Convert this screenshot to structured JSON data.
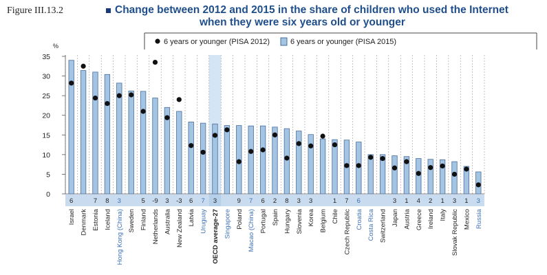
{
  "figure_label": "Figure III.13.2",
  "title_line1": "Change between 2012 and 2015 in the share of children who used the Internet",
  "title_line2": "when they were six years old or younger",
  "colors": {
    "bar": "#a4c4e4",
    "bar_edge": "#4a6d99",
    "dot": "#111111",
    "highlight": "#d4e5f5",
    "title": "#1f4e8c",
    "country_blue": "#3b6fb5",
    "strip": "#c9dcef"
  },
  "chart_data": {
    "type": "bar",
    "ylabel": "%",
    "ylim": [
      0,
      35
    ],
    "yticks": [
      0,
      5,
      10,
      15,
      20,
      25,
      30,
      35
    ],
    "grid": "vertical dashed",
    "legend_position": "top",
    "highlight_category": "OECD average-27",
    "blue_labels": [
      "Hong Kong (China)",
      "Uruguay",
      "Singapore",
      "Macao (China)",
      "Croatia",
      "Costa Rica",
      "Russia"
    ],
    "bold_labels": [
      "OECD average-27"
    ],
    "categories": [
      "Israel",
      "Denmark",
      "Estonia",
      "Iceland",
      "Hong Kong (China)",
      "Sweden",
      "Finland",
      "Netherlands",
      "Australia",
      "New Zealand",
      "Latvia",
      "Uruguay",
      "OECD average-27",
      "Singapore",
      "Poland",
      "Macao (China)",
      "Portugal",
      "Spain",
      "Hungary",
      "Slovenia",
      "Korea",
      "Belgium",
      "Chile",
      "Czech Republic",
      "Croatia",
      "Costa Rica",
      "Switzerland",
      "Japan",
      "Austria",
      "Greece",
      "Ireland",
      "Italy",
      "Slovak Republic",
      "Mexico",
      "Russia"
    ],
    "differences": [
      "6",
      "",
      "7",
      "8",
      "3",
      "",
      "5",
      "-9",
      "3",
      "-3",
      "6",
      "7",
      "3",
      "",
      "9",
      "7",
      "6",
      "2",
      "8",
      "3",
      "3",
      "",
      "1",
      "7",
      "6",
      "",
      "",
      "3",
      "1",
      "4",
      "2",
      "1",
      "3",
      "1",
      "3"
    ],
    "series": [
      {
        "name": "6 years or younger (PISA 2015)",
        "kind": "bar",
        "values": [
          34,
          31.4,
          31,
          30.4,
          28.2,
          26.2,
          26.1,
          24.4,
          22,
          21,
          18.3,
          18,
          17.8,
          17.4,
          17.4,
          17.3,
          17.3,
          17,
          16.6,
          16,
          15.1,
          14,
          13.8,
          13.7,
          13.2,
          10,
          10,
          9.7,
          9.5,
          9,
          8.8,
          8.7,
          8.2,
          7,
          5.6
        ]
      },
      {
        "name": "6 years or younger (PISA 2012)",
        "kind": "dot",
        "values": [
          28.2,
          32.5,
          24.4,
          23,
          25,
          25.2,
          21,
          33.5,
          19.4,
          24,
          12.3,
          10.6,
          14.9,
          16.3,
          8.2,
          10.8,
          11.2,
          15,
          9.1,
          12.8,
          12.2,
          14.7,
          12.5,
          7.2,
          7.2,
          9.3,
          9,
          6.6,
          8.2,
          5.2,
          6.7,
          7.1,
          5,
          6.3,
          2.3
        ]
      }
    ]
  }
}
